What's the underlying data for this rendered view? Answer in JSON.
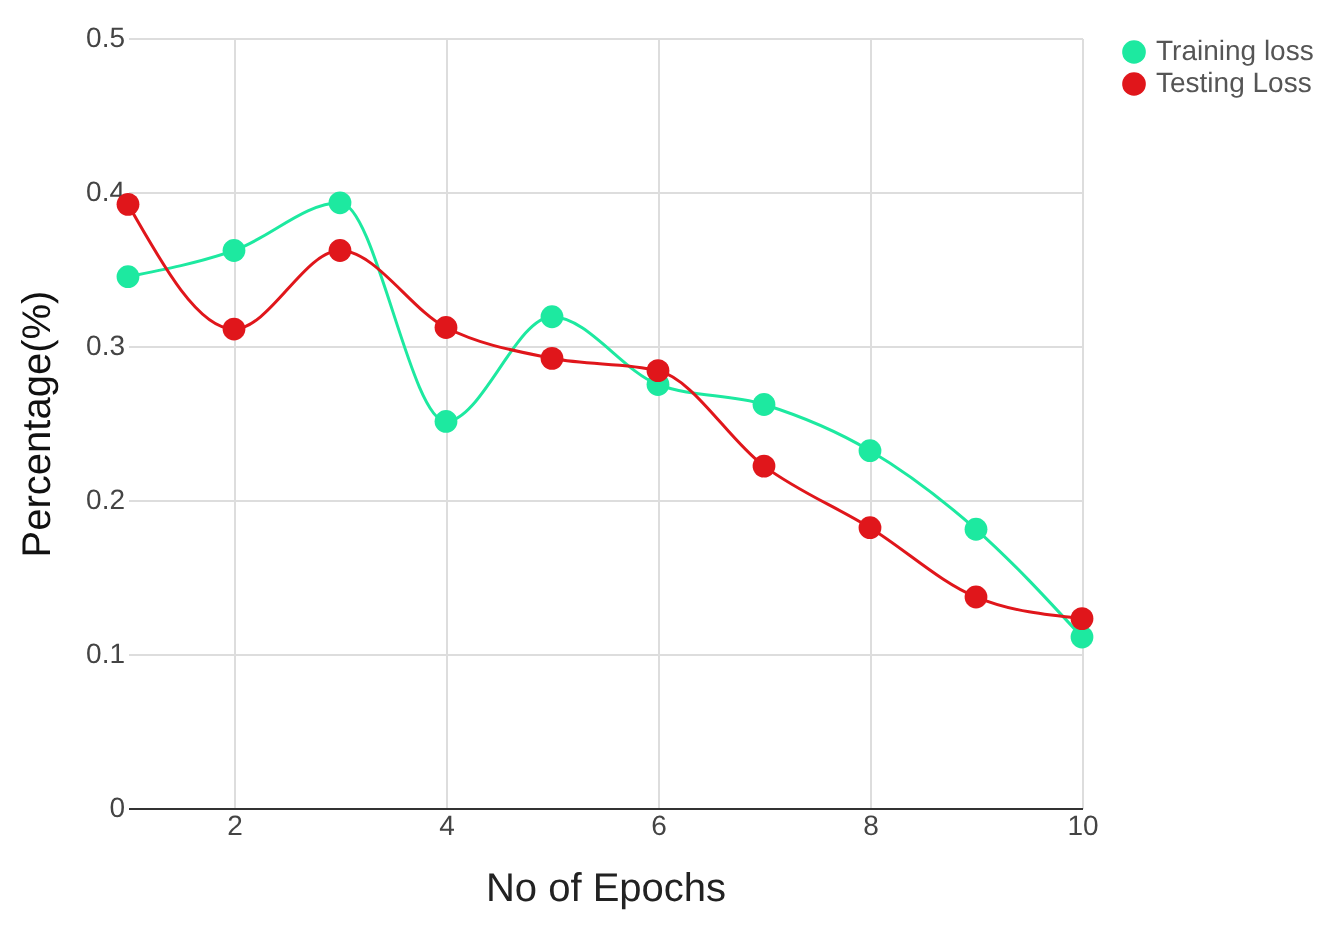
{
  "chart_data": {
    "type": "line",
    "xlabel": "No of Epochs",
    "ylabel": "Percentage(%)",
    "x": [
      1,
      2,
      3,
      4,
      5,
      6,
      7,
      8,
      9,
      10
    ],
    "series": [
      {
        "name": "Training loss",
        "color": "#1de9a0",
        "values": [
          0.345,
          0.362,
          0.393,
          0.251,
          0.319,
          0.275,
          0.262,
          0.232,
          0.181,
          0.111
        ]
      },
      {
        "name": "Testing Loss",
        "color": "#e0161b",
        "values": [
          0.392,
          0.311,
          0.362,
          0.312,
          0.292,
          0.284,
          0.222,
          0.182,
          0.137,
          0.123
        ]
      }
    ],
    "xlim": [
      1,
      10
    ],
    "xticks": [
      2,
      4,
      6,
      8,
      10
    ],
    "ylim": [
      0,
      0.5
    ],
    "yticks": [
      0,
      0.1,
      0.2,
      0.3,
      0.4,
      0.5
    ],
    "grid": true,
    "legend": "top right",
    "marker": "circle",
    "line_style": "solid"
  }
}
